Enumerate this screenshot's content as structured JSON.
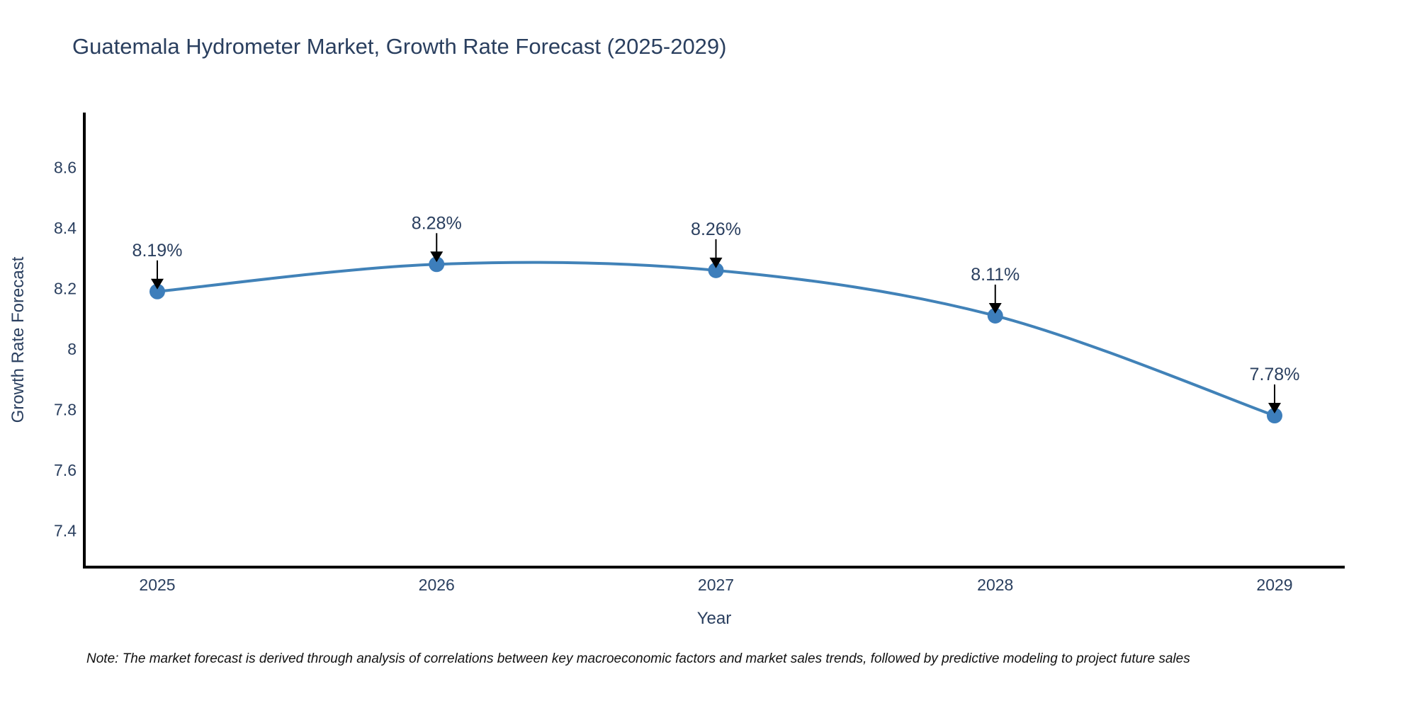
{
  "title": "Guatemala Hydrometer Market, Growth Rate Forecast (2025-2029)",
  "note": "Note: The market forecast is derived through analysis of correlations between key macroeconomic factors and market sales trends, followed by predictive modeling to project future sales",
  "chart_data": {
    "type": "line",
    "title": "Guatemala Hydrometer Market, Growth Rate Forecast (2025-2029)",
    "xlabel": "Year",
    "ylabel": "Growth Rate Forecast",
    "x": [
      2025,
      2026,
      2027,
      2028,
      2029
    ],
    "xtick_labels": [
      "2025",
      "2026",
      "2027",
      "2028",
      "2029"
    ],
    "series": [
      {
        "name": "Growth Rate Forecast",
        "values": [
          8.19,
          8.28,
          8.26,
          8.11,
          7.78
        ]
      }
    ],
    "point_labels": [
      "8.19%",
      "8.28%",
      "8.26%",
      "8.11%",
      "7.78%"
    ],
    "yticks": [
      7.4,
      7.6,
      7.8,
      8,
      8.2,
      8.4,
      8.6
    ],
    "ytick_labels": [
      "7.4",
      "7.6",
      "7.8",
      "8",
      "8.2",
      "8.4",
      "8.6"
    ],
    "xlim": [
      2024.74,
      2029.25
    ],
    "ylim": [
      7.28,
      8.78
    ],
    "grid": false,
    "legend_position": "none",
    "curve": "spline",
    "line_color": "#4182b8",
    "marker_color": "#3d7ebb",
    "arrow_color": "#000000",
    "axis_color": "#000000",
    "label_color": "#2a3f5f"
  }
}
